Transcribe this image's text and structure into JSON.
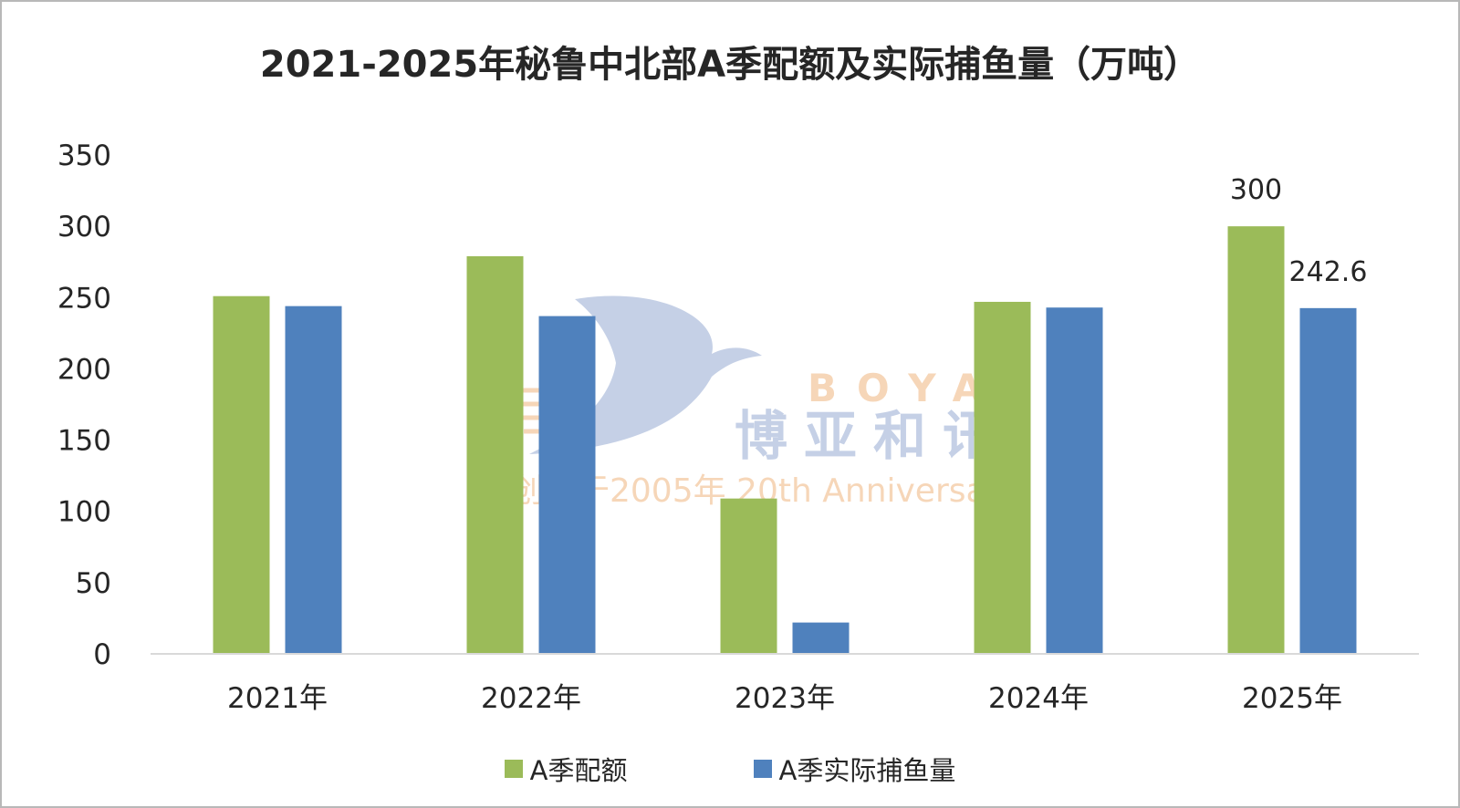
{
  "chart_data": {
    "type": "bar",
    "title": "2021-2025年秘鲁中北部A季配额及实际捕鱼量（万吨）",
    "categories": [
      "2021年",
      "2022年",
      "2023年",
      "2024年",
      "2025年"
    ],
    "series": [
      {
        "name": "A季配额",
        "values": [
          251,
          279,
          109,
          247,
          300
        ],
        "color": "#9bbb59"
      },
      {
        "name": "A季实际捕鱼量",
        "values": [
          244,
          237,
          22,
          243,
          242.6
        ],
        "color": "#4f81bd"
      }
    ],
    "data_labels": [
      {
        "series": 0,
        "index": 4,
        "text": "300"
      },
      {
        "series": 1,
        "index": 4,
        "text": "242.6"
      }
    ],
    "yticks": [
      "0",
      "50",
      "100",
      "150",
      "200",
      "250",
      "300",
      "350"
    ],
    "ylim": [
      0,
      350
    ],
    "grid": false,
    "legend_position": "bottom"
  },
  "watermark": {
    "brand_latin": "BOYA",
    "brand_cn": "博亚和讯",
    "tagline": "创始于2005年 20th Anniversary",
    "colors": {
      "bird": "#c5d0e6",
      "accent": "#f6d6b8"
    }
  }
}
